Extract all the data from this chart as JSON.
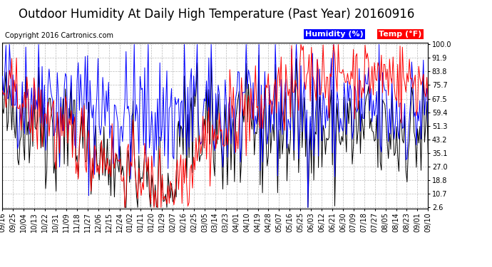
{
  "title": "Outdoor Humidity At Daily High Temperature (Past Year) 20160916",
  "copyright": "Copyright 2016 Cartronics.com",
  "legend_humidity": "Humidity (%)",
  "legend_temp": "Temp (°F)",
  "humidity_color": "#0000FF",
  "temp_color": "#FF0000",
  "black_color": "#000000",
  "bg_color": "#FFFFFF",
  "plot_bg_color": "#FFFFFF",
  "grid_color": "#BBBBBB",
  "legend_humidity_bg": "#0000FF",
  "legend_temp_bg": "#FF0000",
  "yticks": [
    2.6,
    10.7,
    18.8,
    27.0,
    35.1,
    43.2,
    51.3,
    59.4,
    67.5,
    75.7,
    83.8,
    91.9,
    100.0
  ],
  "xtick_labels": [
    "09/16",
    "09/25",
    "10/04",
    "10/13",
    "10/22",
    "10/31",
    "11/09",
    "11/18",
    "11/27",
    "12/06",
    "12/15",
    "12/24",
    "01/02",
    "01/11",
    "01/20",
    "01/29",
    "02/07",
    "02/16",
    "02/25",
    "03/05",
    "03/14",
    "03/23",
    "04/01",
    "04/10",
    "04/19",
    "04/28",
    "05/07",
    "05/16",
    "05/25",
    "06/03",
    "06/12",
    "06/21",
    "06/30",
    "07/09",
    "07/18",
    "07/27",
    "08/05",
    "08/14",
    "08/23",
    "09/01",
    "09/10"
  ],
  "ymin": 2.6,
  "ymax": 100.0,
  "title_fontsize": 12,
  "copyright_fontsize": 7,
  "tick_fontsize": 7,
  "legend_fontsize": 8
}
